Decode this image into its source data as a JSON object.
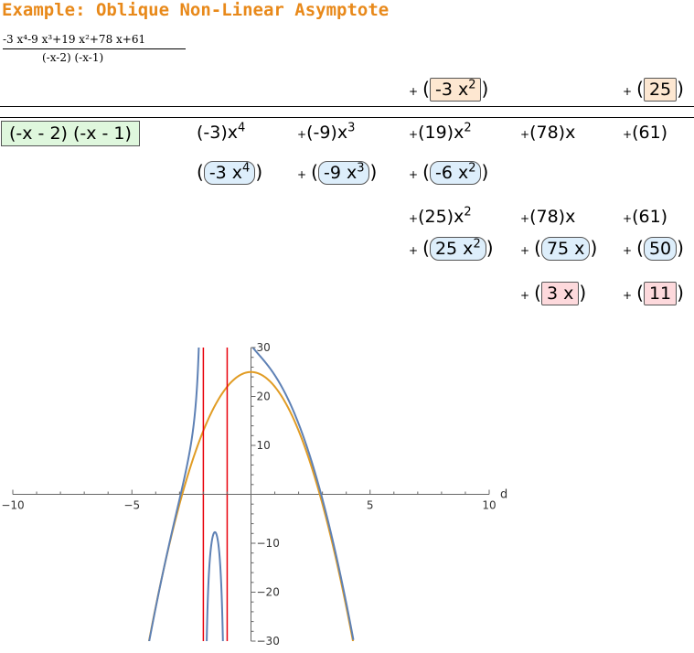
{
  "header": {
    "title": "Example: Oblique Non-Linear Asymptote",
    "expr_numerator": "-3 x⁴-9 x³+19 x²+78 x+61",
    "expr_denominator": "(-x-2) (-x-1)"
  },
  "division": {
    "plus": "+",
    "open_paren": "(",
    "close_paren": ")",
    "quotient_term_1": "-3 x",
    "quotient_term_1_exp": "2",
    "quotient_term_2": "25",
    "divisor": "(-x - 2) (-x - 1)",
    "dividend_c4": "(-3)",
    "dividend_x4": "x",
    "dividend_e4": "4",
    "dividend_c3": "(-9)",
    "dividend_x3": "x",
    "dividend_e3": "3",
    "dividend_c2": "(19)",
    "dividend_x2": "x",
    "dividend_e2": "2",
    "dividend_c1": "(78)",
    "dividend_x1": "x",
    "dividend_c0": "(61)",
    "sub1_t4": "-3 x",
    "sub1_t4_exp": "4",
    "sub1_t3": "-9 x",
    "sub1_t3_exp": "3",
    "sub1_t2": "-6 x",
    "sub1_t2_exp": "2",
    "rem1_c2": "(25)",
    "rem1_x2": "x",
    "rem1_e2": "2",
    "rem1_c1": "(78)",
    "rem1_x1": "x",
    "rem1_c0": "(61)",
    "sub2_t2": "25 x",
    "sub2_t2_exp": "2",
    "sub2_t1": "75 x",
    "sub2_t0": "50",
    "remainder_t1": "3 x",
    "remainder_t0": "11"
  },
  "chart_data": {
    "type": "line",
    "xlim": [
      -10,
      10
    ],
    "ylim": [
      -30,
      30
    ],
    "xlabel": "d",
    "x_ticks": [
      -10,
      -5,
      5,
      10
    ],
    "x_tick_labels": [
      "−10",
      "−5",
      "5",
      "10"
    ],
    "y_ticks": [
      30,
      20,
      10,
      -10,
      -20,
      -30
    ],
    "y_tick_labels": [
      "30",
      "20",
      "10",
      "−10",
      "−20",
      "−30"
    ],
    "series": [
      {
        "function": "(-3x^4-9x^3+19x^2+78x+61)/((-x-2)(-x-1))",
        "color": "#5e81b5"
      },
      {
        "function": "-3x^2+25",
        "color": "#e19c24"
      }
    ],
    "vertical_asymptotes": [
      -2,
      -1
    ],
    "asymptote_color": "#e8000b",
    "grid": false
  }
}
